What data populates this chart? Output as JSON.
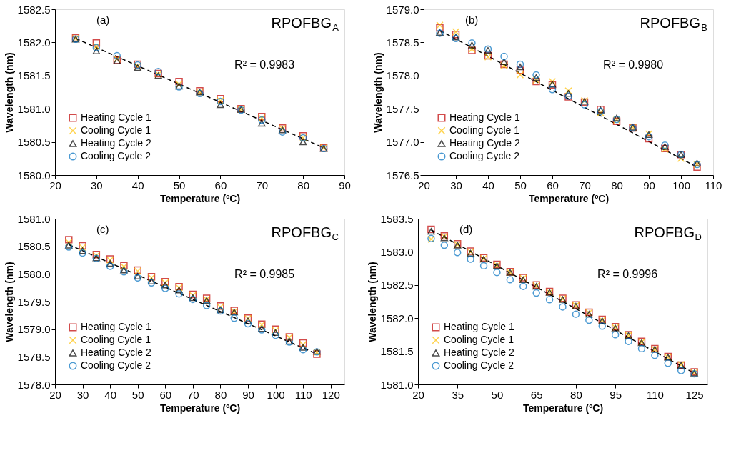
{
  "chart_data": [
    {
      "type": "scatter",
      "title": "RPOFBG$_{A}$",
      "xlabel": "Temperature (ºC)",
      "ylabel": "Wavelength (nm)",
      "annotations": [
        "(a)",
        "R² = 0.9983"
      ],
      "legend": "bottom left",
      "grid": false,
      "x": [
        25,
        30,
        35,
        40,
        45,
        50,
        55,
        60,
        65,
        70,
        75,
        80,
        85
      ],
      "xlim": [
        20,
        90
      ],
      "xticks": [
        20,
        30,
        40,
        50,
        60,
        70,
        80,
        90
      ],
      "ylim": [
        1580.0,
        1582.5
      ],
      "yticks": [
        {
          "value": 1580,
          "label": "1580.0"
        },
        1580.5,
        {
          "value": 1581,
          "label": "1581.0"
        },
        1581.5,
        {
          "value": 1582,
          "label": "1582.0"
        },
        1582.5
      ],
      "series": [
        {
          "name": "Heating Cycle 1",
          "color": "#c00000",
          "marker": "square",
          "values": [
            1582.07,
            1581.99,
            1581.73,
            1581.67,
            1581.53,
            1581.41,
            1581.27,
            1581.15,
            1581.0,
            1580.88,
            1580.71,
            1580.59,
            1580.41
          ]
        },
        {
          "name": "Cooling Cycle 1",
          "color": "#ffc000",
          "marker": "cross",
          "values": [
            1582.06,
            1581.94,
            1581.75,
            1581.64,
            1581.52,
            1581.37,
            1581.25,
            1581.12,
            1580.99,
            1580.86,
            1580.7,
            1580.56,
            1580.41
          ]
        },
        {
          "name": "Heating Cycle 2",
          "color": "#000000",
          "marker": "triangle",
          "values": [
            1582.05,
            1581.87,
            1581.72,
            1581.62,
            1581.5,
            1581.34,
            1581.25,
            1581.06,
            1580.99,
            1580.78,
            1580.68,
            1580.5,
            1580.4
          ]
        },
        {
          "name": "Cooling Cycle 2",
          "color": "#0070c0",
          "marker": "circle",
          "values": [
            1582.05,
            1581.92,
            1581.8,
            1581.66,
            1581.56,
            1581.33,
            1581.23,
            1581.11,
            1580.98,
            1580.83,
            1580.65,
            1580.56,
            1580.4
          ]
        },
        {
          "type": "line",
          "color": "#000000",
          "line_style": "dashed",
          "marker": "none",
          "x": [
            25,
            85
          ],
          "values": [
            1582.06,
            1580.41
          ]
        }
      ]
    },
    {
      "type": "scatter",
      "title": "RPOFBG$_{B}$",
      "xlabel": "Temperature (ºC)",
      "ylabel": "Wavelength (nm)",
      "annotations": [
        "(b)",
        "R² = 0.9980"
      ],
      "legend": "bottom left",
      "grid": false,
      "x": [
        25,
        30,
        35,
        40,
        45,
        50,
        55,
        60,
        65,
        70,
        75,
        80,
        85,
        90,
        95,
        100,
        105
      ],
      "xlim": [
        20,
        110
      ],
      "xticks": [
        20,
        30,
        40,
        50,
        60,
        70,
        80,
        90,
        100,
        110
      ],
      "ylim": [
        1576.5,
        1579.0
      ],
      "yticks": [
        1576.5,
        {
          "value": 1577,
          "label": "1577.0"
        },
        1577.5,
        {
          "value": 1578,
          "label": "1578.0"
        },
        1578.5,
        {
          "value": 1579,
          "label": "1579.0"
        }
      ],
      "series": [
        {
          "name": "Heating Cycle 1",
          "color": "#c00000",
          "marker": "square",
          "values": [
            1578.72,
            1578.62,
            1578.38,
            1578.3,
            1578.17,
            1578.08,
            1577.91,
            1577.86,
            1577.68,
            1577.6,
            1577.49,
            1577.31,
            1577.21,
            1577.05,
            1576.9,
            1576.81,
            1576.62
          ]
        },
        {
          "name": "Cooling Cycle 1",
          "color": "#ffc000",
          "marker": "cross",
          "values": [
            1578.76,
            1578.66,
            1578.4,
            1578.28,
            1578.15,
            1578.01,
            1577.93,
            1577.91,
            1577.77,
            1577.62,
            1577.44,
            1577.33,
            1577.22,
            1577.12,
            1576.89,
            1576.75,
            1576.66
          ]
        },
        {
          "name": "Heating Cycle 2",
          "color": "#000000",
          "marker": "triangle",
          "values": [
            1578.65,
            1578.58,
            1578.46,
            1578.38,
            1578.21,
            1578.13,
            1577.97,
            1577.87,
            1577.73,
            1577.61,
            1577.48,
            1577.36,
            1577.22,
            1577.11,
            1576.93,
            1576.81,
            1576.68
          ]
        },
        {
          "name": "Cooling Cycle 2",
          "color": "#0070c0",
          "marker": "circle",
          "values": [
            1578.64,
            1578.56,
            1578.49,
            1578.4,
            1578.29,
            1578.17,
            1578.01,
            1577.79,
            1577.69,
            1577.56,
            1577.46,
            1577.34,
            1577.21,
            1577.08,
            1576.95,
            1576.81,
            1576.66
          ]
        },
        {
          "type": "line",
          "color": "#000000",
          "line_style": "dashed",
          "marker": "none",
          "x": [
            25,
            105
          ],
          "values": [
            1578.68,
            1576.62
          ]
        }
      ]
    },
    {
      "type": "scatter",
      "title": "RPOFBG$_{C}$",
      "xlabel": "Temperature (ºC)",
      "ylabel": "Wavelength (nm)",
      "annotations": [
        "(c)",
        "R² = 0.9985"
      ],
      "legend": "bottom left",
      "grid": false,
      "x": [
        25,
        30,
        35,
        40,
        45,
        50,
        55,
        60,
        65,
        70,
        75,
        80,
        85,
        90,
        95,
        100,
        105,
        110,
        115
      ],
      "xlim": [
        20,
        125
      ],
      "xticks": [
        20,
        30,
        40,
        50,
        60,
        70,
        80,
        90,
        100,
        110,
        120
      ],
      "ylim": [
        1578.0,
        1581.0
      ],
      "yticks": [
        {
          "value": 1578,
          "label": "1578.0"
        },
        1578.5,
        {
          "value": 1579,
          "label": "1579.0"
        },
        1579.5,
        {
          "value": 1580,
          "label": "1580.0"
        },
        1580.5,
        {
          "value": 1581,
          "label": "1581.0"
        }
      ],
      "series": [
        {
          "name": "Heating Cycle 1",
          "color": "#c00000",
          "marker": "square",
          "values": [
            1580.62,
            1580.51,
            1580.35,
            1580.27,
            1580.15,
            1580.07,
            1579.95,
            1579.86,
            1579.77,
            1579.63,
            1579.56,
            1579.42,
            1579.34,
            1579.2,
            1579.09,
            1579.0,
            1578.86,
            1578.75,
            1578.55
          ]
        },
        {
          "name": "Cooling Cycle 1",
          "color": "#ffc000",
          "marker": "cross",
          "values": [
            1580.57,
            1580.48,
            1580.33,
            1580.25,
            1580.13,
            1580.05,
            1579.93,
            1579.84,
            1579.75,
            1579.61,
            1579.54,
            1579.4,
            1579.32,
            1579.19,
            1579.08,
            1578.98,
            1578.85,
            1578.72,
            1578.58
          ]
        },
        {
          "name": "Heating Cycle 2",
          "color": "#000000",
          "marker": "triangle",
          "values": [
            1580.52,
            1580.42,
            1580.29,
            1580.19,
            1580.07,
            1579.96,
            1579.87,
            1579.8,
            1579.71,
            1579.57,
            1579.52,
            1579.35,
            1579.31,
            1579.15,
            1579.01,
            1578.94,
            1578.78,
            1578.67,
            1578.6
          ]
        },
        {
          "name": "Cooling Cycle 2",
          "color": "#0070c0",
          "marker": "circle",
          "values": [
            1580.49,
            1580.38,
            1580.28,
            1580.14,
            1580.04,
            1579.93,
            1579.84,
            1579.74,
            1579.64,
            1579.54,
            1579.43,
            1579.33,
            1579.2,
            1579.1,
            1578.99,
            1578.89,
            1578.77,
            1578.63,
            1578.59
          ]
        },
        {
          "type": "line",
          "color": "#000000",
          "line_style": "dashed",
          "marker": "none",
          "x": [
            25,
            115
          ],
          "values": [
            1580.53,
            1578.55
          ]
        }
      ]
    },
    {
      "type": "scatter",
      "title": "RPOFBG$_{D}$",
      "xlabel": "Temperature (ºC)",
      "ylabel": "Wavelength (nm)",
      "annotations": [
        "(d)",
        "R² = 0.9996"
      ],
      "legend": "bottom left",
      "grid": false,
      "x": [
        25,
        30,
        35,
        40,
        45,
        50,
        55,
        60,
        65,
        70,
        75,
        80,
        85,
        90,
        95,
        100,
        105,
        110,
        115,
        120,
        125
      ],
      "xlim": [
        20,
        130
      ],
      "xticks": [
        20,
        35,
        50,
        65,
        80,
        95,
        110,
        125
      ],
      "ylim": [
        1581.0,
        1583.5
      ],
      "yticks": [
        {
          "value": 1581,
          "label": "1581.0"
        },
        1581.5,
        {
          "value": 1582,
          "label": "1582.0"
        },
        1582.5,
        {
          "value": 1583,
          "label": "1583.0"
        },
        1583.5
      ],
      "series": [
        {
          "name": "Heating Cycle 1",
          "color": "#c00000",
          "marker": "square",
          "values": [
            1583.34,
            1583.24,
            1583.12,
            1583.01,
            1582.91,
            1582.81,
            1582.7,
            1582.61,
            1582.5,
            1582.4,
            1582.3,
            1582.2,
            1582.09,
            1581.98,
            1581.87,
            1581.75,
            1581.65,
            1581.54,
            1581.42,
            1581.29,
            1581.19
          ]
        },
        {
          "name": "Cooling Cycle 1",
          "color": "#ffc000",
          "marker": "cross",
          "values": [
            1583.19,
            1583.23,
            1583.11,
            1583.0,
            1582.9,
            1582.8,
            1582.69,
            1582.6,
            1582.49,
            1582.39,
            1582.29,
            1582.19,
            1582.08,
            1581.97,
            1581.86,
            1581.74,
            1581.64,
            1581.53,
            1581.41,
            1581.3,
            1581.18
          ]
        },
        {
          "name": "Heating Cycle 2",
          "color": "#000000",
          "marker": "triangle",
          "values": [
            1583.31,
            1583.21,
            1583.1,
            1582.98,
            1582.89,
            1582.79,
            1582.69,
            1582.58,
            1582.48,
            1582.39,
            1582.28,
            1582.18,
            1582.06,
            1581.96,
            1581.85,
            1581.74,
            1581.63,
            1581.53,
            1581.41,
            1581.29,
            1581.17
          ]
        },
        {
          "name": "Cooling Cycle 2",
          "color": "#0070c0",
          "marker": "circle",
          "values": [
            1583.2,
            1583.1,
            1582.99,
            1582.89,
            1582.79,
            1582.69,
            1582.58,
            1582.48,
            1582.38,
            1582.28,
            1582.17,
            1582.06,
            1581.97,
            1581.88,
            1581.75,
            1581.65,
            1581.54,
            1581.44,
            1581.32,
            1581.21,
            1581.16
          ]
        },
        {
          "type": "line",
          "color": "#000000",
          "line_style": "dashed",
          "marker": "none",
          "x": [
            25,
            125
          ],
          "values": [
            1583.33,
            1581.17
          ]
        }
      ]
    }
  ]
}
